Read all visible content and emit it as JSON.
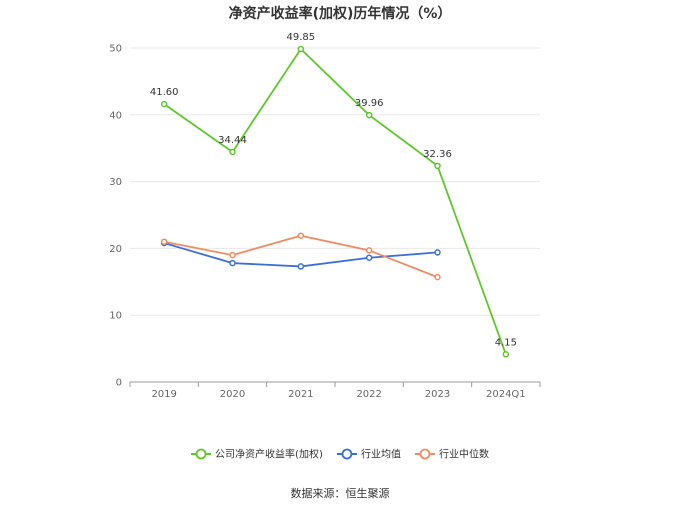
{
  "chart_data": {
    "type": "line",
    "title": "净资产收益率(加权)历年情况（%）",
    "categories": [
      "2019",
      "2020",
      "2021",
      "2022",
      "2023",
      "2024Q1"
    ],
    "y_ticks": [
      "0",
      "10",
      "20",
      "30",
      "40",
      "50"
    ],
    "ylim": [
      0,
      50
    ],
    "grid": true,
    "legend_position": "bottom",
    "series": [
      {
        "name": "公司净资产收益率(加权)",
        "color": "#5ec82a",
        "values": [
          41.6,
          34.44,
          49.85,
          39.96,
          32.36,
          4.15
        ],
        "labels": [
          "41.60",
          "34.44",
          "49.85",
          "39.96",
          "32.36",
          "4.15"
        ]
      },
      {
        "name": "行业均值",
        "color": "#3a6fd8",
        "values": [
          20.8,
          17.8,
          17.3,
          18.6,
          19.4,
          null
        ]
      },
      {
        "name": "行业中位数",
        "color": "#f08c62",
        "values": [
          21.0,
          19.0,
          21.9,
          19.7,
          15.7,
          null
        ]
      }
    ]
  },
  "source": "数据来源：恒生聚源"
}
